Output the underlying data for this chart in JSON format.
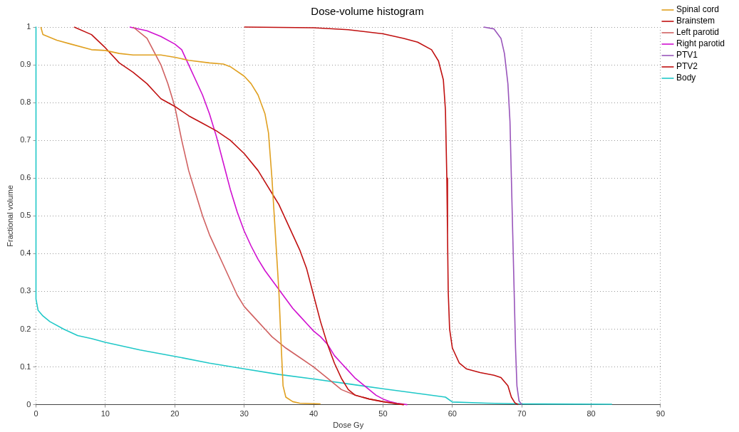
{
  "chart_data": {
    "type": "line",
    "title": "Dose-volume histogram",
    "xlabel": "Dose Gy",
    "ylabel": "Fractional volume",
    "xlim": [
      0,
      90
    ],
    "xticks": [
      0,
      10,
      20,
      30,
      40,
      50,
      60,
      70,
      80,
      90
    ],
    "ylim": [
      0,
      1
    ],
    "yticks": [
      0,
      0.1,
      0.2,
      0.3,
      0.4,
      0.5,
      0.6,
      0.7,
      0.8,
      0.9,
      1
    ],
    "grid": true,
    "legend": "top right",
    "marker": "none",
    "line_style": "solid",
    "series": [
      {
        "name": "Spinal cord",
        "color": "#e0a020",
        "x": [
          0.7,
          1,
          3,
          5,
          8,
          10,
          12,
          14,
          18,
          20,
          22,
          25,
          27,
          28,
          30,
          31,
          32,
          33,
          33.5,
          34,
          34.5,
          35,
          35.3,
          35.6,
          36,
          37,
          38,
          41
        ],
        "values": [
          1,
          0.98,
          0.965,
          0.955,
          0.94,
          0.938,
          0.93,
          0.926,
          0.926,
          0.92,
          0.912,
          0.905,
          0.902,
          0.895,
          0.87,
          0.85,
          0.82,
          0.77,
          0.72,
          0.6,
          0.45,
          0.3,
          0.17,
          0.05,
          0.02,
          0.008,
          0.004,
          0.002
        ]
      },
      {
        "name": "Brainstem",
        "color": "#c01010",
        "x": [
          5.5,
          8,
          10,
          12,
          14,
          16,
          17,
          18,
          20,
          22,
          24,
          26,
          28,
          30,
          32,
          33,
          34,
          35,
          36,
          37,
          38,
          39,
          40,
          41,
          42,
          43,
          44,
          45,
          46,
          48,
          50,
          52,
          53
        ],
        "values": [
          1,
          0.98,
          0.945,
          0.905,
          0.88,
          0.85,
          0.83,
          0.81,
          0.79,
          0.765,
          0.745,
          0.725,
          0.7,
          0.665,
          0.62,
          0.59,
          0.56,
          0.53,
          0.49,
          0.45,
          0.41,
          0.36,
          0.29,
          0.22,
          0.16,
          0.11,
          0.07,
          0.04,
          0.025,
          0.015,
          0.008,
          0.002,
          0
        ]
      },
      {
        "name": "Left parotid",
        "color": "#d06060",
        "x": [
          14,
          16,
          18,
          19,
          20,
          21,
          22,
          23,
          24,
          25,
          26,
          27,
          28,
          29,
          30,
          32,
          33,
          34,
          35,
          36,
          38,
          40,
          42,
          44,
          46,
          48,
          50,
          52,
          53
        ],
        "values": [
          1,
          0.97,
          0.9,
          0.85,
          0.79,
          0.7,
          0.62,
          0.56,
          0.5,
          0.45,
          0.41,
          0.37,
          0.33,
          0.29,
          0.26,
          0.22,
          0.2,
          0.18,
          0.165,
          0.15,
          0.125,
          0.1,
          0.07,
          0.04,
          0.025,
          0.015,
          0.008,
          0.003,
          0
        ]
      },
      {
        "name": "Right parotid",
        "color": "#d010d0",
        "x": [
          13.5,
          16,
          18,
          20,
          21,
          22,
          23,
          24,
          25,
          26,
          27,
          28,
          29,
          30,
          31,
          32,
          33,
          34,
          35,
          36,
          37,
          38,
          39,
          40,
          41,
          42,
          43,
          44,
          45,
          46,
          47,
          48,
          49,
          50,
          51,
          52,
          53.5
        ],
        "values": [
          1,
          0.99,
          0.975,
          0.955,
          0.94,
          0.9,
          0.86,
          0.82,
          0.77,
          0.71,
          0.64,
          0.57,
          0.51,
          0.46,
          0.42,
          0.385,
          0.355,
          0.33,
          0.305,
          0.28,
          0.255,
          0.235,
          0.215,
          0.195,
          0.18,
          0.16,
          0.13,
          0.11,
          0.09,
          0.07,
          0.055,
          0.04,
          0.025,
          0.015,
          0.008,
          0.004,
          0
        ]
      },
      {
        "name": "PTV1",
        "color": "#9955bb",
        "x": [
          64.5,
          66,
          67,
          67.5,
          68,
          68.3,
          68.5,
          68.7,
          68.9,
          69.1,
          69.3,
          69.6,
          70
        ],
        "values": [
          1,
          0.995,
          0.97,
          0.93,
          0.85,
          0.75,
          0.6,
          0.45,
          0.3,
          0.15,
          0.05,
          0.01,
          0
        ]
      },
      {
        "name": "PTV2",
        "color": "#c01010",
        "x": [
          30,
          40,
          45,
          50,
          53,
          55,
          57,
          58,
          58.7,
          59,
          59.2,
          59.3,
          59.4,
          59.6,
          60,
          61,
          62,
          64,
          66,
          67,
          68,
          68.5,
          69,
          69.5
        ],
        "values": [
          1,
          0.998,
          0.993,
          0.982,
          0.97,
          0.96,
          0.94,
          0.91,
          0.86,
          0.78,
          0.6,
          0.45,
          0.3,
          0.2,
          0.15,
          0.11,
          0.095,
          0.085,
          0.078,
          0.072,
          0.05,
          0.02,
          0.005,
          0
        ]
      },
      {
        "name": "Body",
        "color": "#20c8c8",
        "x": [
          0,
          0,
          0.3,
          1,
          2,
          4,
          6,
          8,
          10,
          15,
          20,
          25,
          30,
          35,
          40,
          45,
          50,
          55,
          59,
          60,
          65,
          70,
          83
        ],
        "values": [
          1,
          0.28,
          0.25,
          0.235,
          0.22,
          0.2,
          0.183,
          0.175,
          0.165,
          0.145,
          0.128,
          0.11,
          0.095,
          0.08,
          0.068,
          0.055,
          0.042,
          0.03,
          0.02,
          0.007,
          0.004,
          0.002,
          0.001
        ]
      }
    ]
  }
}
